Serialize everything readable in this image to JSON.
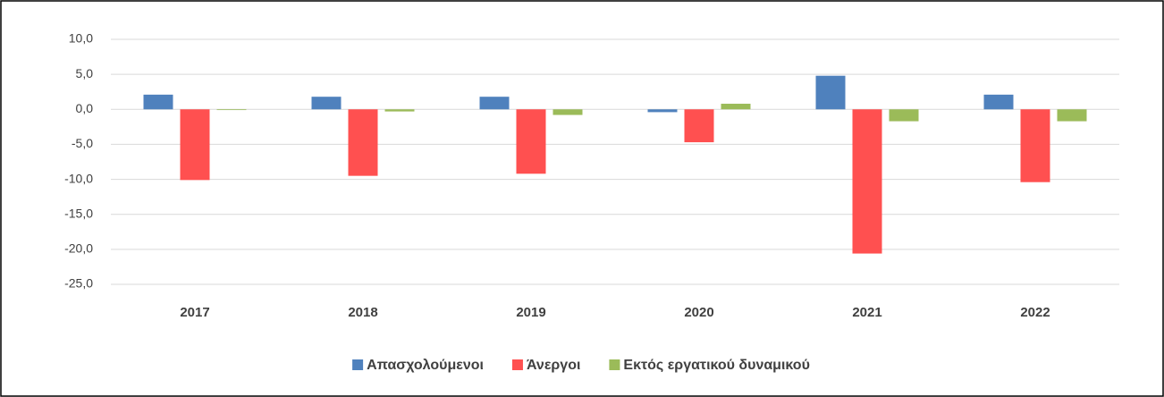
{
  "chart_data": {
    "type": "bar",
    "categories": [
      "2017",
      "2018",
      "2019",
      "2020",
      "2021",
      "2022"
    ],
    "series": [
      {
        "name": "Απασχολούμενοι",
        "color": "#4f81bd",
        "values": [
          2.1,
          1.8,
          1.8,
          -0.4,
          4.8,
          2.1
        ]
      },
      {
        "name": "Άνεργοι",
        "color": "#ff5050",
        "values": [
          -10.1,
          -9.5,
          -9.2,
          -4.7,
          -20.6,
          -10.4
        ]
      },
      {
        "name": "Εκτός εργατικού δυναμικού",
        "color": "#9bbb59",
        "values": [
          -0.1,
          -0.3,
          -0.8,
          0.8,
          -1.7,
          -1.7
        ]
      }
    ],
    "ylim": [
      -25,
      10
    ],
    "yticks": [
      {
        "value": -25,
        "label": "-25,0"
      },
      {
        "value": -20,
        "label": "-20,0"
      },
      {
        "value": -15,
        "label": "-15,0"
      },
      {
        "value": -10,
        "label": "-10,0"
      },
      {
        "value": -5,
        "label": "-5,0"
      },
      {
        "value": 0,
        "label": "0,0"
      },
      {
        "value": 5,
        "label": "5,0"
      },
      {
        "value": 10,
        "label": "10,0"
      }
    ],
    "grid": true,
    "legend": "bottom"
  }
}
